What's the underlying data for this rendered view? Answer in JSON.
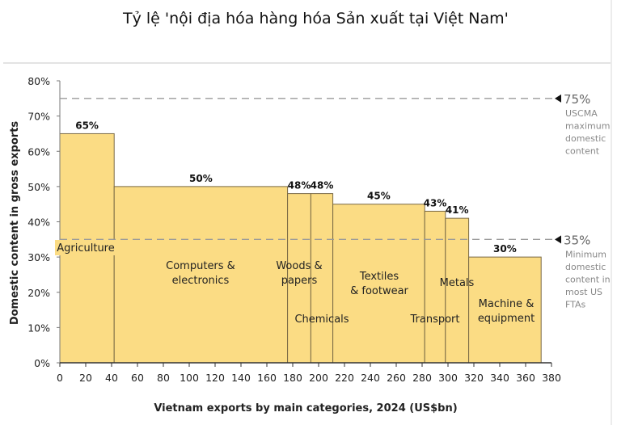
{
  "title": "Tỷ lệ 'nội địa hóa hàng hóa Sản xuất tại Việt Nam'",
  "chart_data": {
    "type": "bar",
    "subtype": "variable-width (marimekko-style) bar chart",
    "title": "Tỷ lệ 'nội địa hóa hàng hóa Sản xuất tại Việt Nam'",
    "xlabel": "Vietnam exports by main categories, 2024 (US$bn)",
    "ylabel": "Domestic content in gross exports",
    "xlim": [
      0,
      380
    ],
    "ylim": [
      0,
      80
    ],
    "x_ticks": [
      0,
      20,
      40,
      60,
      80,
      100,
      120,
      140,
      160,
      180,
      200,
      220,
      240,
      260,
      280,
      300,
      320,
      340,
      360,
      380
    ],
    "y_ticks": [
      "0%",
      "10%",
      "20%",
      "30%",
      "40%",
      "50%",
      "60%",
      "70%",
      "80%"
    ],
    "grid": false,
    "bar_color": "#fbdc84",
    "bars": [
      {
        "category": "Agriculture",
        "x_start": 0,
        "x_end": 42,
        "value": 65,
        "label": "65%"
      },
      {
        "category": "Computers & electronics",
        "x_start": 42,
        "x_end": 176,
        "value": 50,
        "label": "50%"
      },
      {
        "category": "Woods & papers",
        "x_start": 176,
        "x_end": 194,
        "value": 48,
        "label": "48%"
      },
      {
        "category": "Chemicals",
        "x_start": 194,
        "x_end": 211,
        "value": 48,
        "label": "48%"
      },
      {
        "category": "Textiles & footwear",
        "x_start": 211,
        "x_end": 282,
        "value": 45,
        "label": "45%"
      },
      {
        "category": "Transport",
        "x_start": 282,
        "x_end": 298,
        "value": 43,
        "label": "43%"
      },
      {
        "category": "Metals",
        "x_start": 298,
        "x_end": 316,
        "value": 41,
        "label": "41%"
      },
      {
        "category": "Machine & equipment",
        "x_start": 316,
        "x_end": 372,
        "value": 30,
        "label": "30%"
      }
    ],
    "categories": [
      "Agriculture",
      "Computers & electronics",
      "Woods & papers",
      "Chemicals",
      "Textiles & footwear",
      "Transport",
      "Metals",
      "Machine & equipment"
    ],
    "values": [
      65,
      50,
      48,
      48,
      45,
      43,
      41,
      30
    ],
    "widths_usd_bn": [
      42,
      134,
      18,
      17,
      71,
      16,
      18,
      56
    ],
    "reference_lines": [
      {
        "value": 75,
        "label": "75%",
        "note": [
          "USCMA",
          "maximum",
          "domestic",
          "content"
        ]
      },
      {
        "value": 35,
        "label": "35%",
        "note": [
          "Minimum",
          "domestic",
          "content in",
          "most US",
          "FTAs"
        ]
      }
    ]
  }
}
